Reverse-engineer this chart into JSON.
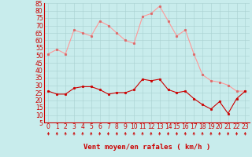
{
  "hours": [
    0,
    1,
    2,
    3,
    4,
    5,
    6,
    7,
    8,
    9,
    10,
    11,
    12,
    13,
    14,
    15,
    16,
    17,
    18,
    19,
    20,
    21,
    22,
    23
  ],
  "vent_moyen": [
    26,
    24,
    24,
    28,
    29,
    29,
    27,
    24,
    25,
    25,
    27,
    34,
    33,
    34,
    27,
    25,
    26,
    21,
    17,
    14,
    19,
    11,
    21,
    26
  ],
  "en_rafales": [
    51,
    54,
    51,
    67,
    65,
    63,
    73,
    70,
    65,
    60,
    58,
    76,
    78,
    83,
    73,
    63,
    67,
    51,
    37,
    33,
    32,
    30,
    26,
    26
  ],
  "xlabel": "Vent moyen/en rafales ( km/h )",
  "bg_color": "#c8ecec",
  "grid_color": "#a8d0d0",
  "line_color_mean": "#cc0000",
  "line_color_gust": "#ff9999",
  "marker_color_mean": "#cc0000",
  "marker_color_gust": "#dd6666",
  "ylim_min": 5,
  "ylim_max": 85,
  "yticks": [
    5,
    10,
    15,
    20,
    25,
    30,
    35,
    40,
    45,
    50,
    55,
    60,
    65,
    70,
    75,
    80,
    85
  ],
  "tick_fontsize": 5.5,
  "xlabel_fontsize": 6.5
}
